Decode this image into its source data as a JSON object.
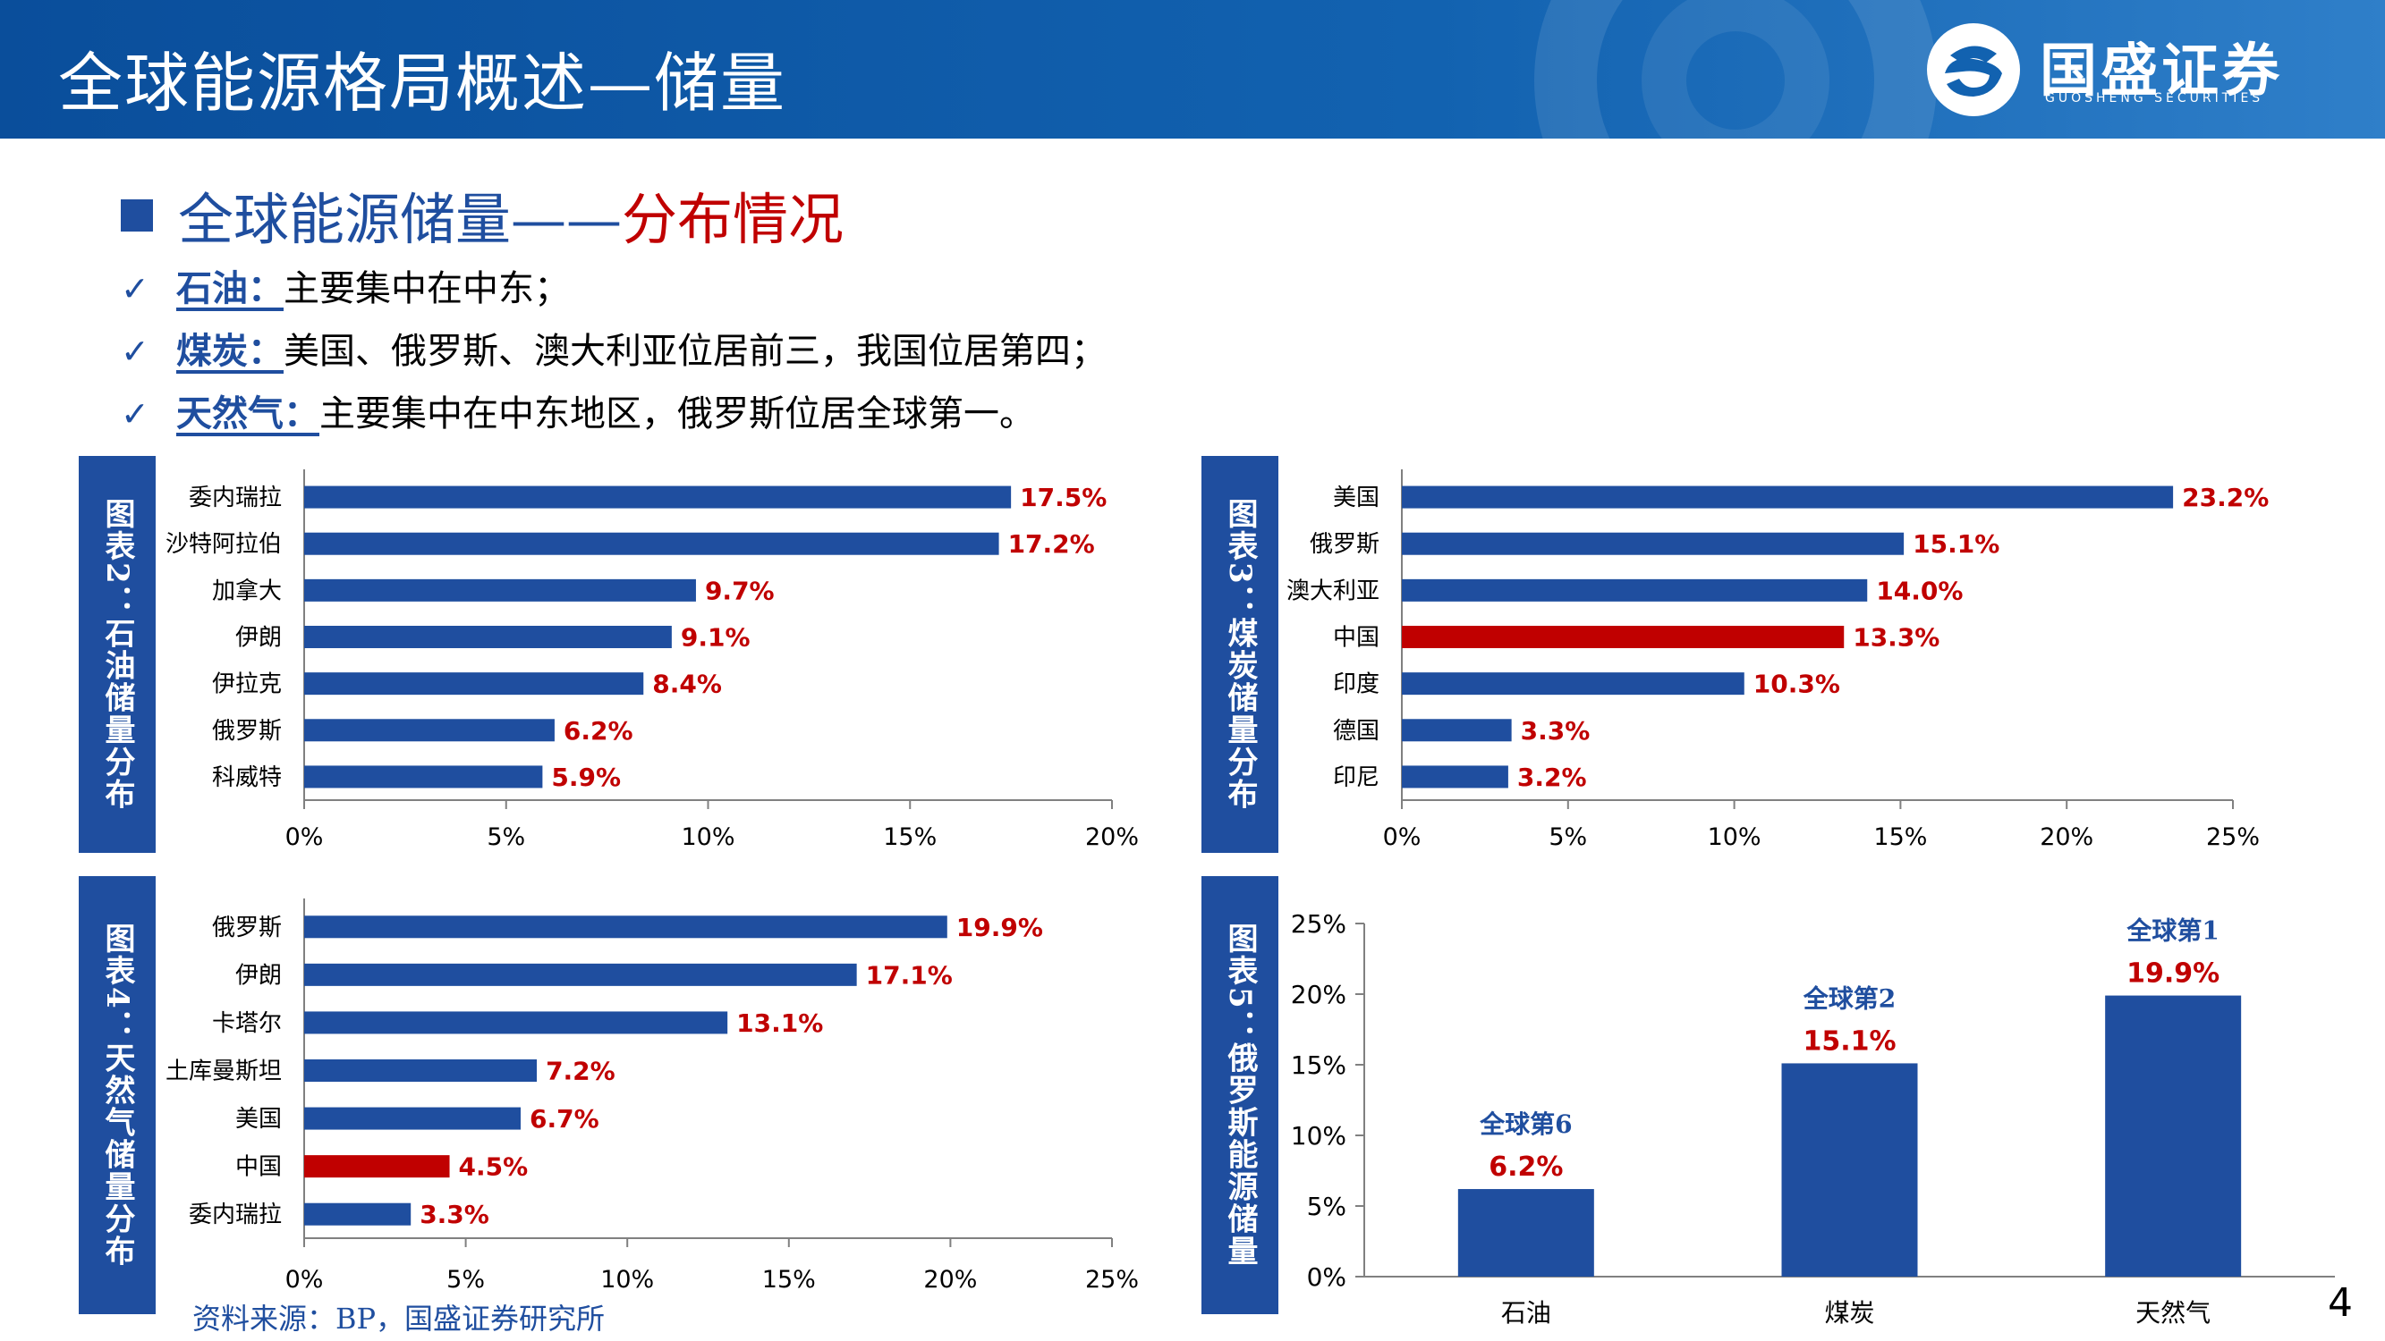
{
  "header": {
    "title": "全球能源格局概述—储量"
  },
  "logo": {
    "name": "国盛证券",
    "sub": "GUOSHENG SECURITIES"
  },
  "section": {
    "main": "全球能源储量",
    "sep": "——",
    "highlight": "分布情况"
  },
  "bullets": [
    {
      "label": "石油：",
      "text": "主要集中在中东；"
    },
    {
      "label": "煤炭：",
      "text": "美国、俄罗斯、澳大利亚位居前三，我国位居第四；"
    },
    {
      "label": "天然气：",
      "text": "主要集中在中东地区，俄罗斯位居全球第一。"
    }
  ],
  "panels": [
    "图表2：石油储量分布",
    "图表3：煤炭储量分布",
    "图表4：天然气储量分布",
    "图表5：俄罗斯能源储量"
  ],
  "chart_data": [
    {
      "type": "bar",
      "orientation": "horizontal",
      "categories": [
        "委内瑞拉",
        "沙特阿拉伯",
        "加拿大",
        "伊朗",
        "伊拉克",
        "俄罗斯",
        "科威特"
      ],
      "values": [
        17.5,
        17.2,
        9.7,
        9.1,
        8.4,
        6.2,
        5.9
      ],
      "data_labels": [
        "17.5%",
        "17.2%",
        "9.7%",
        "9.1%",
        "8.4%",
        "6.2%",
        "5.9%"
      ],
      "xlim": [
        0,
        20
      ],
      "ticks": [
        "0%",
        "5%",
        "10%",
        "15%",
        "20%"
      ],
      "bar_color": "#1f4e9f",
      "highlight_color": "#c00000",
      "highlight": [],
      "grid": false
    },
    {
      "type": "bar",
      "orientation": "horizontal",
      "categories": [
        "美国",
        "俄罗斯",
        "澳大利亚",
        "中国",
        "印度",
        "德国",
        "印尼"
      ],
      "values": [
        23.2,
        15.1,
        14.0,
        13.3,
        10.3,
        3.3,
        3.2
      ],
      "data_labels": [
        "23.2%",
        "15.1%",
        "14.0%",
        "13.3%",
        "10.3%",
        "3.3%",
        "3.2%"
      ],
      "xlim": [
        0,
        25
      ],
      "ticks": [
        "0%",
        "5%",
        "10%",
        "15%",
        "20%",
        "25%"
      ],
      "bar_color": "#1f4e9f",
      "highlight_color": "#c00000",
      "highlight": [
        3
      ],
      "grid": false
    },
    {
      "type": "bar",
      "orientation": "horizontal",
      "categories": [
        "俄罗斯",
        "伊朗",
        "卡塔尔",
        "土库曼斯坦",
        "美国",
        "中国",
        "委内瑞拉"
      ],
      "values": [
        19.9,
        17.1,
        13.1,
        7.2,
        6.7,
        4.5,
        3.3
      ],
      "data_labels": [
        "19.9%",
        "17.1%",
        "13.1%",
        "7.2%",
        "6.7%",
        "4.5%",
        "3.3%"
      ],
      "xlim": [
        0,
        25
      ],
      "ticks": [
        "0%",
        "5%",
        "10%",
        "15%",
        "20%",
        "25%"
      ],
      "bar_color": "#1f4e9f",
      "highlight_color": "#c00000",
      "highlight": [
        5
      ],
      "grid": false
    },
    {
      "type": "bar",
      "orientation": "vertical",
      "categories": [
        "石油",
        "煤炭",
        "天然气"
      ],
      "values": [
        6.2,
        15.1,
        19.9
      ],
      "data_labels": [
        "6.2%",
        "15.1%",
        "19.9%"
      ],
      "rank_labels": [
        "全球第6",
        "全球第2",
        "全球第1"
      ],
      "ylim": [
        0,
        25
      ],
      "ticks": [
        "0%",
        "5%",
        "10%",
        "15%",
        "20%",
        "25%"
      ],
      "bar_color": "#1f4e9f",
      "grid": false
    }
  ],
  "footer": {
    "source": "资料来源：BP，国盛证券研究所",
    "page": "4"
  }
}
